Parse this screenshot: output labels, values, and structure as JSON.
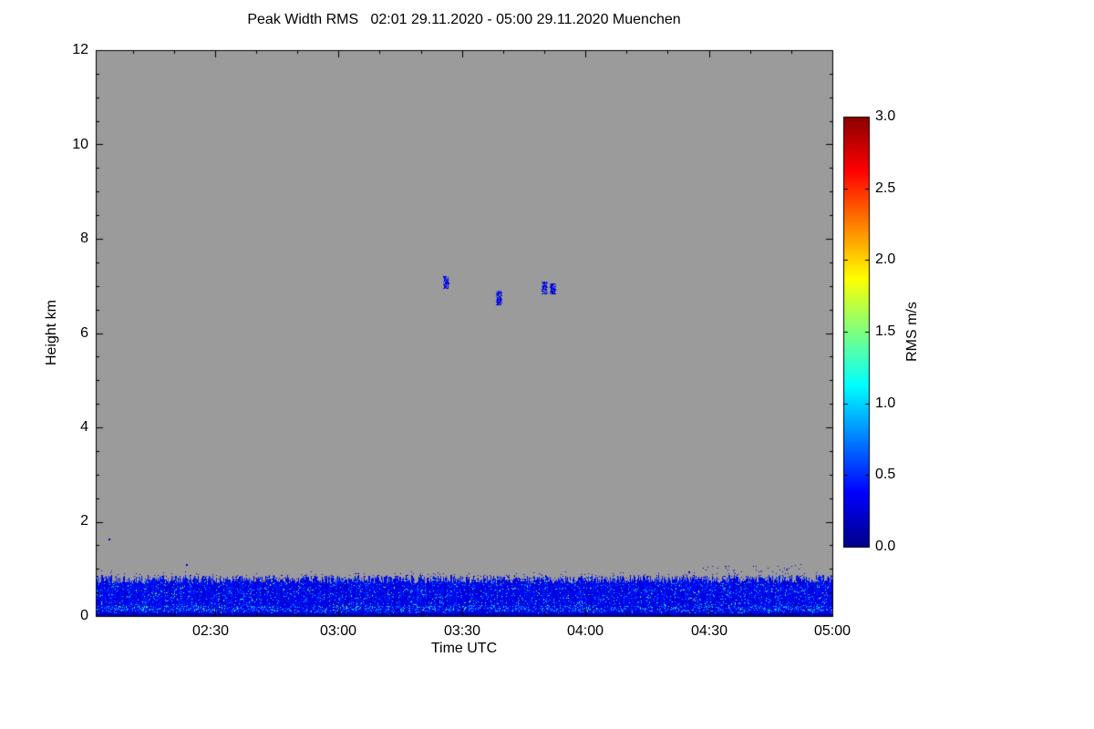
{
  "chart_data": {
    "type": "heatmap",
    "title": "Peak Width RMS   02:01 29.11.2020 - 05:00 29.11.2020 Muenchen",
    "xlabel": "Time UTC",
    "ylabel": "Height km",
    "x_start": "02:01",
    "x_end": "05:00",
    "x_tick_labels": [
      "02:30",
      "03:00",
      "03:30",
      "04:00",
      "04:30",
      "05:00"
    ],
    "x_minor_step_min": 10,
    "y_range_km": [
      0,
      12
    ],
    "y_ticks_km": [
      0,
      2,
      4,
      6,
      8,
      10,
      12
    ],
    "y_tick_labels": [
      "0",
      "2",
      "4",
      "6",
      "8",
      "10",
      "12"
    ],
    "y_minor_step_km": 0.5,
    "no_data_color": "#9b9b9b",
    "frame_color": "#000000",
    "colorbar": {
      "label": "RMS m/s",
      "min": 0.0,
      "max": 3.0,
      "tick_labels": [
        "0.0",
        "0.5",
        "1.0",
        "1.5",
        "2.0",
        "2.5",
        "3.0"
      ],
      "colormap": "jet",
      "stops": [
        {
          "t": 0.0,
          "color": "#00008B"
        },
        {
          "t": 0.125,
          "color": "#0000FF"
        },
        {
          "t": 0.375,
          "color": "#00FFFF"
        },
        {
          "t": 0.625,
          "color": "#FFFF00"
        },
        {
          "t": 0.875,
          "color": "#FF0000"
        },
        {
          "t": 1.0,
          "color": "#8B0000"
        }
      ]
    },
    "surface_band": {
      "description": "Continuous low-level echo band of low RMS (blue, ~0.15-0.5 m/s) from the surface up to ~0.8 km across the whole time period, with cyan speckles concentrated near 0.1-0.2 km",
      "top_km_mean": 0.78,
      "top_km_jitter": 0.09,
      "rms_base_range": [
        0.15,
        0.5
      ],
      "speckle_rms_range": [
        0.75,
        1.3
      ],
      "speckle_probability": 0.05,
      "bright_streak_km": [
        0.1,
        0.22
      ],
      "seed": 42
    },
    "elevated_echoes": [
      {
        "time": "03:26",
        "height_km": [
          6.95,
          7.2
        ],
        "rms_range": [
          0.1,
          0.5
        ]
      },
      {
        "time": "03:39",
        "height_km": [
          6.6,
          6.9
        ],
        "rms_range": [
          0.1,
          0.5
        ]
      },
      {
        "time": "03:50",
        "height_km": [
          6.85,
          7.1
        ],
        "rms_range": [
          0.1,
          0.5
        ]
      },
      {
        "time": "03:52",
        "height_km": [
          6.85,
          7.05
        ],
        "rms_range": [
          0.1,
          0.5
        ]
      }
    ],
    "isolated_specks": [
      {
        "time": "02:04",
        "height_km": 1.65
      },
      {
        "time": "02:23",
        "height_km": 1.1
      },
      {
        "time": "04:25",
        "height_km": 0.95
      }
    ],
    "scatter_speckles": {
      "time_span": [
        "04:28",
        "04:53"
      ],
      "height_km": [
        0.9,
        1.1
      ],
      "count": 35,
      "rms_range": [
        0.05,
        0.3
      ]
    }
  }
}
